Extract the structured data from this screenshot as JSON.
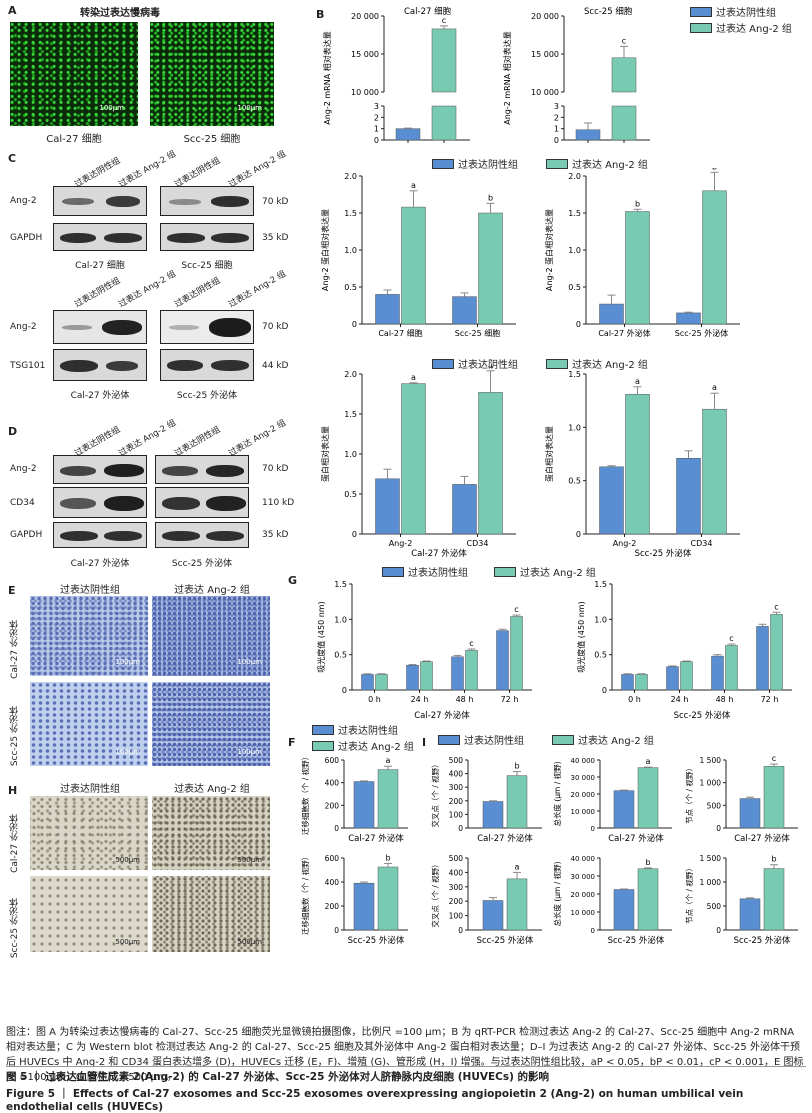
{
  "colors": {
    "blue": "#5a8ed2",
    "green": "#78cbb2"
  },
  "legend": {
    "neg": "过表达阴性组",
    "ang": "过表达 Ang-2 组"
  },
  "panelA": {
    "letter": "A",
    "title": "转染过表达慢病毒",
    "scale": "100μm",
    "cap1": "Cal-27 细胞",
    "cap2": "Scc-25 细胞"
  },
  "panelB": {
    "letter": "B",
    "ylabel": "Ang-2 mRNA 相对表达量",
    "title1": "Cal-27 细胞",
    "title2": "Scc-25 细胞"
  },
  "panelC": {
    "letter": "C",
    "lanes": [
      "过表达阴性组",
      "过表达 Ang-2 组",
      "过表达阴性组",
      "过表达 Ang-2 组"
    ],
    "rows1": [
      "Ang-2",
      "GAPDH"
    ],
    "kd1": [
      "70 kD",
      "35 kD"
    ],
    "cap1": "Cal-27 细胞",
    "cap2": "Scc-25 细胞",
    "rows2": [
      "Ang-2",
      "TSG101"
    ],
    "kd2": [
      "70 kD",
      "44 kD"
    ],
    "cap3": "Cal-27 外泌体",
    "cap4": "Scc-25 外泌体"
  },
  "panelD": {
    "letter": "D",
    "lanes": [
      "过表达阴性组",
      "过表达 Ang-2 组",
      "过表达阴性组",
      "过表达 Ang-2 组"
    ],
    "rows": [
      "Ang-2",
      "CD34",
      "GAPDH"
    ],
    "kd": [
      "70 kD",
      "110 kD",
      "35 kD"
    ],
    "cap1": "Cal-27 外泌体",
    "cap2": "Scc-25 外泌体"
  },
  "panelE": {
    "letter": "E",
    "col1": "过表达阴性组",
    "col2": "过表达 Ang-2 组",
    "row1": "Cal-27 外泌体",
    "row2": "Scc-25 外泌体",
    "scale": "100μm"
  },
  "panelH": {
    "letter": "H",
    "col1": "过表达阴性组",
    "col2": "过表达 Ang-2 组",
    "row1": "Cal-27 外泌体",
    "row2": "Scc-25 外泌体",
    "scale": "500μm"
  },
  "panelF": {
    "letter": "F"
  },
  "panelG": {
    "letter": "G"
  },
  "panelI": {
    "letter": "I"
  },
  "chart_data": [
    {
      "id": "B1",
      "type": "bar",
      "title": "Cal-27 细胞",
      "ylabel": "Ang-2 mRNA 相对表达量",
      "broken_axis": true,
      "ylim_low": [
        0,
        3
      ],
      "ylim_high": [
        10000,
        20000
      ],
      "ticks_low": [
        "0",
        "1",
        "2",
        "3"
      ],
      "ticks_high": [
        "10 000",
        "15 000",
        "20 000"
      ],
      "values": [
        1,
        18300
      ],
      "err": [
        0.05,
        400
      ],
      "sig": [
        "",
        "c"
      ]
    },
    {
      "id": "B2",
      "type": "bar",
      "title": "Scc-25 细胞",
      "ylabel": "Ang-2 mRNA 相对表达量",
      "broken_axis": true,
      "ylim_low": [
        0,
        3
      ],
      "ylim_high": [
        10000,
        20000
      ],
      "ticks_low": [
        "0",
        "1",
        "2",
        "3"
      ],
      "ticks_high": [
        "10 000",
        "15 000",
        "20 000"
      ],
      "values": [
        0.9,
        14500
      ],
      "err": [
        0.6,
        1500
      ],
      "sig": [
        "",
        "c"
      ]
    },
    {
      "id": "C1",
      "type": "bar",
      "ylabel": "Ang-2 蛋白相对表达量",
      "ylim": [
        0,
        2
      ],
      "ticks": [
        "0",
        "0.5",
        "1.0",
        "1.5",
        "2.0"
      ],
      "categories": [
        "Cal-27 细胞",
        "Scc-25 细胞"
      ],
      "series": [
        {
          "values": [
            0.4,
            0.37
          ]
        },
        {
          "values": [
            1.58,
            1.5
          ]
        }
      ],
      "err": [
        [
          0.06,
          0.05
        ],
        [
          0.22,
          0.13
        ]
      ],
      "sig": [
        "a",
        "b"
      ]
    },
    {
      "id": "C2",
      "type": "bar",
      "ylabel": "Ang-2 蛋白相对表达量",
      "ylim": [
        0,
        2
      ],
      "ticks": [
        "0",
        "0.5",
        "1.0",
        "1.5",
        "2.0"
      ],
      "categories": [
        "Cal-27 外泌体",
        "Scc-25 外泌体"
      ],
      "series": [
        {
          "values": [
            0.27,
            0.15
          ]
        },
        {
          "values": [
            1.52,
            1.8
          ]
        }
      ],
      "err": [
        [
          0.12,
          0.01
        ],
        [
          0.03,
          0.25
        ]
      ],
      "sig": [
        "b",
        "b"
      ]
    },
    {
      "id": "D1",
      "type": "bar",
      "ylabel": "蛋白相对表达量",
      "xlabel": "Cal-27 外泌体",
      "ylim": [
        0,
        2
      ],
      "ticks": [
        "0",
        "0.5",
        "1.0",
        "1.5",
        "2.0"
      ],
      "categories": [
        "Ang-2",
        "CD34"
      ],
      "series": [
        {
          "values": [
            0.69,
            0.62
          ]
        },
        {
          "values": [
            1.88,
            1.77
          ]
        }
      ],
      "err": [
        [
          0.12,
          0.1
        ],
        [
          0.01,
          0.27
        ]
      ],
      "sig": [
        "a",
        "a"
      ]
    },
    {
      "id": "D2",
      "type": "bar",
      "ylabel": "蛋白相对表达量",
      "xlabel": "Scc-25 外泌体",
      "ylim": [
        0,
        1.5
      ],
      "ticks": [
        "0",
        "0.5",
        "1.0",
        "1.5"
      ],
      "categories": [
        "Ang-2",
        "CD34"
      ],
      "series": [
        {
          "values": [
            0.63,
            0.71
          ]
        },
        {
          "values": [
            1.31,
            1.17
          ]
        }
      ],
      "err": [
        [
          0.01,
          0.07
        ],
        [
          0.07,
          0.15
        ]
      ],
      "sig": [
        "a",
        "a"
      ]
    },
    {
      "id": "G1",
      "type": "bar",
      "ylabel": "吸光度值 (450 nm)",
      "xlabel": "Cal-27 外泌体",
      "ylim": [
        0,
        1.5
      ],
      "ticks": [
        "0",
        "0.5",
        "1.0",
        "1.5"
      ],
      "categories": [
        "0 h",
        "24 h",
        "48 h",
        "72 h"
      ],
      "series": [
        {
          "values": [
            0.22,
            0.35,
            0.47,
            0.84
          ]
        },
        {
          "values": [
            0.22,
            0.4,
            0.56,
            1.04
          ]
        }
      ],
      "err": [
        [
          0.01,
          0.01,
          0.02,
          0.02
        ],
        [
          0.01,
          0.01,
          0.02,
          0.02
        ]
      ],
      "sig": [
        "",
        "",
        "c",
        "c"
      ]
    },
    {
      "id": "G2",
      "type": "bar",
      "ylabel": "吸光度值 (450 nm)",
      "xlabel": "Scc-25 外泌体",
      "ylim": [
        0,
        1.5
      ],
      "ticks": [
        "0",
        "0.5",
        "1.0",
        "1.5"
      ],
      "categories": [
        "0 h",
        "24 h",
        "48 h",
        "72 h"
      ],
      "series": [
        {
          "values": [
            0.22,
            0.33,
            0.48,
            0.9
          ]
        },
        {
          "values": [
            0.22,
            0.4,
            0.63,
            1.07
          ]
        }
      ],
      "err": [
        [
          0.01,
          0.01,
          0.02,
          0.03
        ],
        [
          0.01,
          0.01,
          0.02,
          0.03
        ]
      ],
      "sig": [
        "",
        "",
        "c",
        "c"
      ]
    },
    {
      "id": "F1",
      "type": "bar",
      "ylabel": "迁移细胞数（个 / 视野）",
      "xlabel": "Cal-27 外泌体",
      "ylim": [
        0,
        600
      ],
      "ticks": [
        "0",
        "200",
        "400",
        "600"
      ],
      "values": [
        410,
        515
      ],
      "err": [
        5,
        30
      ],
      "sig": [
        "",
        "a"
      ]
    },
    {
      "id": "F2",
      "type": "bar",
      "ylabel": "迁移细胞数（个 / 视野）",
      "xlabel": "Scc-25 外泌体",
      "ylim": [
        0,
        600
      ],
      "ticks": [
        "0",
        "200",
        "400",
        "600"
      ],
      "values": [
        390,
        525
      ],
      "err": [
        10,
        30
      ],
      "sig": [
        "",
        "b"
      ]
    },
    {
      "id": "I1",
      "type": "bar",
      "ylabel": "交叉点（个 / 视野）",
      "xlabel": "Cal-27 外泌体",
      "ylim": [
        0,
        500
      ],
      "ticks": [
        "0",
        "100",
        "200",
        "300",
        "400",
        "500"
      ],
      "values": [
        195,
        385
      ],
      "err": [
        5,
        30
      ],
      "sig": [
        "",
        "b"
      ]
    },
    {
      "id": "I2",
      "type": "bar",
      "ylabel": "总长度 (μm / 视野)",
      "xlabel": "Cal-27 外泌体",
      "ylim": [
        0,
        40000
      ],
      "ticks": [
        "0",
        "10 000",
        "20 000",
        "30 000",
        "40 000"
      ],
      "values": [
        22000,
        35500
      ],
      "err": [
        300,
        300
      ],
      "sig": [
        "",
        "a"
      ]
    },
    {
      "id": "I3",
      "type": "bar",
      "ylabel": "节点（个 / 视野）",
      "xlabel": "Cal-27 外泌体",
      "ylim": [
        0,
        1500
      ],
      "ticks": [
        "0",
        "500",
        "1 000",
        "1 500"
      ],
      "values": [
        650,
        1360
      ],
      "err": [
        30,
        50
      ],
      "sig": [
        "",
        "c"
      ]
    },
    {
      "id": "I4",
      "type": "bar",
      "ylabel": "交叉点（个 / 视野）",
      "xlabel": "Scc-25 外泌体",
      "ylim": [
        0,
        500
      ],
      "ticks": [
        "0",
        "100",
        "200",
        "300",
        "400",
        "500"
      ],
      "values": [
        205,
        355
      ],
      "err": [
        20,
        45
      ],
      "sig": [
        "",
        "a"
      ]
    },
    {
      "id": "I5",
      "type": "bar",
      "ylabel": "总长度 (μm / 视野)",
      "xlabel": "Scc-25 外泌体",
      "ylim": [
        0,
        40000
      ],
      "ticks": [
        "0",
        "10 000",
        "20 000",
        "30 000",
        "40 000"
      ],
      "values": [
        22500,
        34000
      ],
      "err": [
        300,
        500
      ],
      "sig": [
        "",
        "b"
      ]
    },
    {
      "id": "I6",
      "type": "bar",
      "ylabel": "节点（个 / 视野）",
      "xlabel": "Scc-25 外泌体",
      "ylim": [
        0,
        1500
      ],
      "ticks": [
        "0",
        "500",
        "1 000",
        "1 500"
      ],
      "values": [
        650,
        1280
      ],
      "err": [
        20,
        80
      ],
      "sig": [
        "",
        "b"
      ]
    }
  ],
  "caption": {
    "note": "图注：图 A 为转染过表达慢病毒的 Cal-27、Scc-25 细胞荧光显微镜拍摄图像，比例尺 =100 μm；B 为 qRT-PCR 检测过表达 Ang-2 的 Cal-27、Scc-25 细胞中 Ang-2 mRNA 相对表达量；C 为 Western blot 检测过表达 Ang-2 的 Cal-27、Scc-25 细胞及其外泌体中 Ang-2 蛋白相对表达量；D–I 为过表达 Ang-2 的 Cal-27 外泌体、Scc-25 外泌体干预后 HUVECs 中 Ang-2 和 CD34 蛋白表达增多 (D)，HUVECs 迁移 (E，F)、增殖 (G)、管形成 (H，I) 增强。与过表达阴性组比较，aP < 0.05，bP < 0.01，cP < 0.001，E 图标尺 =100 μm，G 图标尺 =500 μm。",
    "fig_zh": "图 5 ｜ 过表达血管生成素 2(Ang-2) 的 Cal-27 外泌体、Scc-25 外泌体对人脐静脉内皮细胞 (HUVECs) 的影响",
    "fig_en": "Figure 5 ｜ Effects of Cal-27 exosomes and Scc-25 exosomes overexpressing angiopoietin 2 (Ang-2) on human umbilical vein endothelial cells (HUVECs)"
  }
}
